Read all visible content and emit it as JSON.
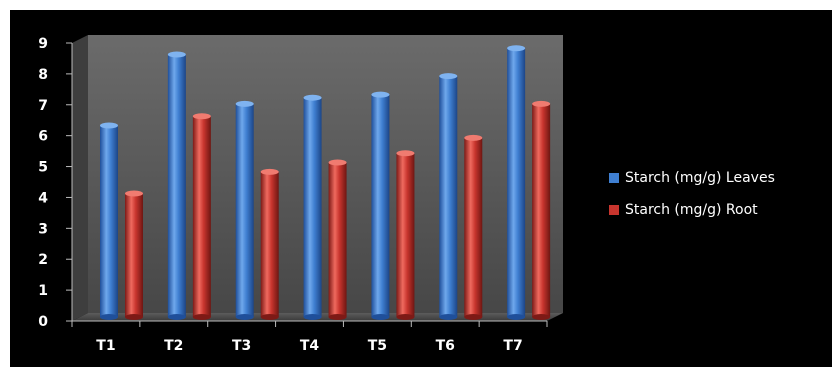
{
  "chart_data": {
    "type": "bar",
    "categories": [
      "T1",
      "T2",
      "T3",
      "T4",
      "T5",
      "T6",
      "T7"
    ],
    "series": [
      {
        "name": "Starch (mg/g) Leaves",
        "values": [
          6.2,
          8.5,
          6.9,
          7.1,
          7.2,
          7.8,
          8.7
        ],
        "color": "#3f7fd1"
      },
      {
        "name": "Starch (mg/g) Root",
        "values": [
          4.0,
          6.5,
          4.7,
          5.0,
          5.3,
          5.8,
          6.9
        ],
        "color": "#c8352e"
      }
    ],
    "y_ticks": [
      "0",
      "1",
      "2",
      "3",
      "4",
      "5",
      "6",
      "7",
      "8",
      "9"
    ],
    "ylim": [
      0,
      9
    ],
    "grid": false,
    "legend_position": "right",
    "style": "3d-cylinder"
  }
}
